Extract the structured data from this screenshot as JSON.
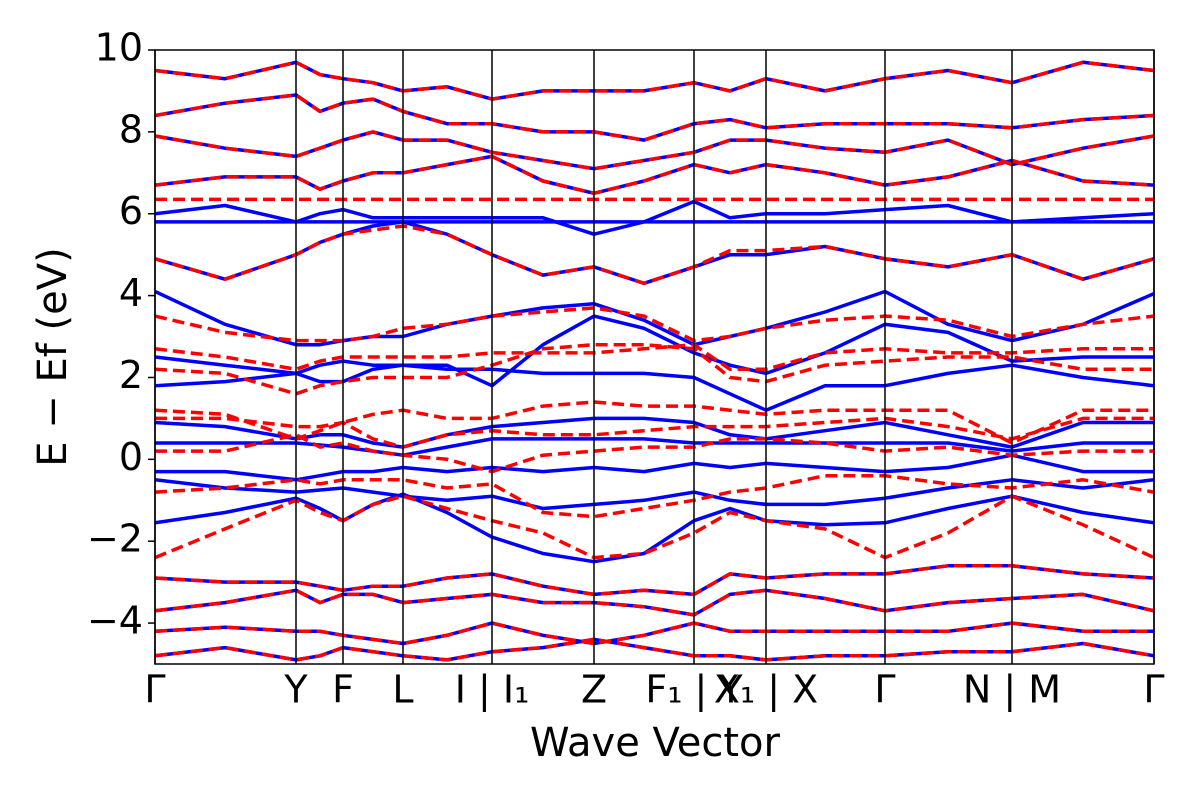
{
  "chart_data": {
    "type": "line",
    "xlabel": "Wave Vector",
    "ylabel": "E − Ef (eV)",
    "xlim": [
      0,
      999
    ],
    "ylim": [
      -5,
      10
    ],
    "xticks": [
      {
        "value": 0,
        "label": "Γ"
      },
      {
        "value": 141,
        "label": "Y"
      },
      {
        "value": 188,
        "label": "F"
      },
      {
        "value": 248,
        "label": "L"
      },
      {
        "value": 337,
        "label": "I | I₁"
      },
      {
        "value": 439,
        "label": "Z"
      },
      {
        "value": 539,
        "label": "F₁ | Y"
      },
      {
        "value": 611,
        "label": "X₁ | X"
      },
      {
        "value": 730,
        "label": "Γ"
      },
      {
        "value": 857,
        "label": "N | M"
      },
      {
        "value": 999,
        "label": "Γ"
      }
    ],
    "yticks": [
      {
        "value": -4,
        "label": "−4"
      },
      {
        "value": -2,
        "label": "−2"
      },
      0,
      2,
      4,
      6,
      8,
      10
    ],
    "x": [
      0,
      70,
      141,
      165,
      188,
      218,
      248,
      292,
      337,
      388,
      439,
      489,
      539,
      575,
      611,
      670,
      730,
      793,
      857,
      928,
      999
    ],
    "series": [
      {
        "color": "#0000ff",
        "linestyle": "solid",
        "values": [
          -1.55,
          -1.3,
          -0.95,
          -1.2,
          -1.5,
          -1.1,
          -0.85,
          -1.3,
          -1.9,
          -2.3,
          -2.5,
          -2.3,
          -1.5,
          -1.2,
          -1.5,
          -1.6,
          -1.55,
          -1.2,
          -0.9,
          -1.3,
          -1.55
        ]
      },
      {
        "color": "#0000ff",
        "linestyle": "solid",
        "values": [
          -0.5,
          -0.7,
          -0.8,
          -0.75,
          -0.7,
          -0.8,
          -0.9,
          -1.0,
          -0.9,
          -1.2,
          -1.1,
          -1.0,
          -0.8,
          -1.0,
          -1.1,
          -1.1,
          -0.95,
          -0.7,
          -0.5,
          -0.7,
          -0.5
        ]
      },
      {
        "color": "#0000ff",
        "linestyle": "solid",
        "values": [
          -0.3,
          -0.3,
          -0.5,
          -0.4,
          -0.3,
          -0.3,
          -0.2,
          -0.3,
          -0.2,
          -0.3,
          -0.2,
          -0.3,
          -0.1,
          -0.2,
          -0.1,
          -0.2,
          -0.3,
          -0.2,
          0.1,
          -0.3,
          -0.3
        ]
      },
      {
        "color": "#0000ff",
        "linestyle": "solid",
        "values": [
          0.4,
          0.4,
          0.4,
          0.35,
          0.3,
          0.2,
          0.1,
          0.3,
          0.5,
          0.5,
          0.5,
          0.5,
          0.4,
          0.4,
          0.4,
          0.4,
          0.4,
          0.4,
          0.2,
          0.4,
          0.4
        ]
      },
      {
        "color": "#0000ff",
        "linestyle": "solid",
        "values": [
          0.9,
          0.8,
          0.5,
          0.6,
          0.6,
          0.4,
          0.3,
          0.6,
          0.8,
          0.9,
          1.0,
          1.0,
          0.9,
          0.6,
          0.5,
          0.7,
          0.9,
          0.6,
          0.3,
          0.9,
          0.9
        ]
      },
      {
        "color": "#0000ff",
        "linestyle": "solid",
        "values": [
          1.8,
          1.9,
          2.1,
          1.9,
          1.9,
          2.2,
          2.3,
          2.2,
          2.2,
          2.1,
          2.1,
          2.1,
          2.0,
          1.6,
          1.2,
          1.8,
          1.8,
          2.1,
          2.3,
          2.0,
          1.8
        ]
      },
      {
        "color": "#0000ff",
        "linestyle": "solid",
        "values": [
          2.5,
          2.3,
          2.1,
          2.3,
          2.4,
          2.3,
          2.3,
          2.3,
          1.8,
          2.8,
          3.5,
          3.2,
          2.6,
          2.3,
          2.1,
          2.6,
          3.3,
          3.1,
          2.4,
          2.5,
          2.5
        ]
      },
      {
        "color": "#0000ff",
        "linestyle": "solid",
        "values": [
          4.1,
          3.3,
          2.8,
          2.8,
          2.9,
          3.0,
          3.0,
          3.3,
          3.5,
          3.7,
          3.8,
          3.4,
          2.8,
          3.0,
          3.2,
          3.6,
          4.1,
          3.3,
          2.9,
          3.3,
          4.05
        ]
      },
      {
        "color": "#0000ff",
        "linestyle": "solid",
        "values": [
          4.9,
          4.4,
          5.0,
          5.3,
          5.5,
          5.7,
          5.8,
          5.5,
          5.0,
          4.5,
          4.7,
          4.3,
          4.7,
          5.0,
          5.0,
          5.2,
          4.9,
          4.7,
          5.0,
          4.4,
          4.9
        ]
      },
      {
        "color": "#0000ff",
        "linestyle": "solid",
        "values": [
          5.8,
          5.8,
          5.8,
          5.8,
          5.8,
          5.8,
          5.8,
          5.8,
          5.8,
          5.8,
          5.8,
          5.8,
          5.8,
          5.8,
          5.8,
          5.8,
          5.8,
          5.8,
          5.8,
          5.8,
          5.8
        ]
      },
      {
        "color": "#0000ff",
        "linestyle": "solid",
        "values": [
          6.0,
          6.2,
          5.8,
          6.0,
          6.1,
          5.9,
          5.9,
          5.9,
          5.9,
          5.9,
          5.5,
          5.8,
          6.3,
          5.9,
          6.0,
          6.0,
          6.1,
          6.2,
          5.8,
          5.9,
          6.0
        ]
      },
      {
        "color": "#0000ff",
        "linestyle": "solid",
        "values": [
          6.7,
          6.9,
          6.9,
          6.6,
          6.8,
          7.0,
          7.0,
          7.2,
          7.4,
          6.8,
          6.5,
          6.8,
          7.2,
          7.0,
          7.2,
          7.0,
          6.7,
          6.9,
          7.3,
          6.8,
          6.7
        ]
      },
      {
        "color": "#0000ff",
        "linestyle": "solid",
        "values": [
          7.9,
          7.6,
          7.4,
          7.6,
          7.8,
          8.0,
          7.8,
          7.8,
          7.5,
          7.3,
          7.1,
          7.3,
          7.5,
          7.8,
          7.8,
          7.6,
          7.5,
          7.8,
          7.2,
          7.6,
          7.9
        ]
      },
      {
        "color": "#0000ff",
        "linestyle": "solid",
        "values": [
          8.4,
          8.7,
          8.9,
          8.5,
          8.7,
          8.8,
          8.5,
          8.2,
          8.2,
          8.0,
          8.0,
          7.8,
          8.2,
          8.3,
          8.1,
          8.2,
          8.2,
          8.2,
          8.1,
          8.3,
          8.4
        ]
      },
      {
        "color": "#0000ff",
        "linestyle": "solid",
        "values": [
          9.5,
          9.3,
          9.7,
          9.4,
          9.3,
          9.2,
          9.0,
          9.1,
          8.8,
          9.0,
          9.0,
          9.0,
          9.2,
          9.0,
          9.3,
          9.0,
          9.3,
          9.5,
          9.2,
          9.7,
          9.5
        ]
      },
      {
        "color": "#0000ff",
        "linestyle": "solid",
        "values": [
          -2.9,
          -3.0,
          -3.0,
          -3.1,
          -3.2,
          -3.1,
          -3.1,
          -2.9,
          -2.8,
          -3.1,
          -3.3,
          -3.2,
          -3.3,
          -2.8,
          -2.9,
          -2.8,
          -2.8,
          -2.6,
          -2.6,
          -2.8,
          -2.9
        ]
      },
      {
        "color": "#0000ff",
        "linestyle": "solid",
        "values": [
          -3.7,
          -3.5,
          -3.2,
          -3.5,
          -3.3,
          -3.3,
          -3.5,
          -3.4,
          -3.3,
          -3.5,
          -3.5,
          -3.6,
          -3.8,
          -3.3,
          -3.2,
          -3.4,
          -3.7,
          -3.5,
          -3.4,
          -3.3,
          -3.7
        ]
      },
      {
        "color": "#0000ff",
        "linestyle": "solid",
        "values": [
          -4.2,
          -4.1,
          -4.2,
          -4.2,
          -4.3,
          -4.4,
          -4.5,
          -4.3,
          -4.0,
          -4.3,
          -4.5,
          -4.3,
          -4.0,
          -4.2,
          -4.2,
          -4.2,
          -4.2,
          -4.2,
          -4.0,
          -4.2,
          -4.2
        ]
      },
      {
        "color": "#0000ff",
        "linestyle": "solid",
        "values": [
          -4.8,
          -4.6,
          -4.9,
          -4.8,
          -4.6,
          -4.7,
          -4.8,
          -4.9,
          -4.7,
          -4.6,
          -4.4,
          -4.6,
          -4.8,
          -4.8,
          -4.9,
          -4.8,
          -4.8,
          -4.7,
          -4.7,
          -4.5,
          -4.8
        ]
      },
      {
        "color": "#ff0000",
        "linestyle": "dashed",
        "values": [
          -2.4,
          -1.7,
          -1.0,
          -1.3,
          -1.5,
          -1.1,
          -0.9,
          -1.2,
          -1.5,
          -1.8,
          -2.4,
          -2.3,
          -1.8,
          -1.3,
          -1.5,
          -1.7,
          -2.4,
          -1.8,
          -0.9,
          -1.6,
          -2.4
        ]
      },
      {
        "color": "#ff0000",
        "linestyle": "dashed",
        "values": [
          -0.8,
          -0.7,
          -0.5,
          -0.6,
          -0.5,
          -0.5,
          -0.5,
          -0.7,
          -0.6,
          -1.3,
          -1.4,
          -1.2,
          -1.0,
          -0.8,
          -0.7,
          -0.4,
          -0.4,
          -0.6,
          -0.7,
          -0.5,
          -0.8
        ]
      },
      {
        "color": "#ff0000",
        "linestyle": "dashed",
        "values": [
          0.2,
          0.2,
          0.6,
          0.3,
          0.4,
          0.2,
          0.1,
          0.0,
          -0.3,
          0.1,
          0.2,
          0.3,
          0.3,
          0.5,
          0.5,
          0.4,
          0.2,
          0.3,
          0.1,
          0.2,
          0.2
        ]
      },
      {
        "color": "#ff0000",
        "linestyle": "dashed",
        "values": [
          1.0,
          1.0,
          0.8,
          0.8,
          0.9,
          0.5,
          0.3,
          0.6,
          0.7,
          0.6,
          0.6,
          0.7,
          0.8,
          0.8,
          0.8,
          0.9,
          1.0,
          0.8,
          0.5,
          1.0,
          1.0
        ]
      },
      {
        "color": "#ff0000",
        "linestyle": "dashed",
        "values": [
          1.2,
          1.1,
          0.5,
          0.7,
          0.9,
          1.1,
          1.2,
          1.0,
          1.0,
          1.3,
          1.4,
          1.3,
          1.3,
          1.2,
          1.1,
          1.2,
          1.2,
          1.2,
          0.4,
          1.2,
          1.2
        ]
      },
      {
        "color": "#ff0000",
        "linestyle": "dashed",
        "values": [
          2.2,
          2.1,
          1.6,
          1.8,
          1.9,
          2.0,
          2.0,
          2.0,
          2.3,
          2.7,
          2.8,
          2.8,
          2.7,
          2.0,
          1.9,
          2.3,
          2.4,
          2.5,
          2.5,
          2.2,
          2.2
        ]
      },
      {
        "color": "#ff0000",
        "linestyle": "dashed",
        "values": [
          2.7,
          2.5,
          2.2,
          2.4,
          2.5,
          2.5,
          2.5,
          2.5,
          2.6,
          2.6,
          2.6,
          2.7,
          2.8,
          2.2,
          2.2,
          2.6,
          2.7,
          2.6,
          2.6,
          2.7,
          2.7
        ]
      },
      {
        "color": "#ff0000",
        "linestyle": "dashed",
        "values": [
          3.5,
          3.1,
          2.9,
          2.9,
          2.9,
          3.0,
          3.2,
          3.3,
          3.5,
          3.6,
          3.7,
          3.5,
          2.9,
          3.0,
          3.2,
          3.4,
          3.5,
          3.4,
          3.0,
          3.3,
          3.5
        ]
      },
      {
        "color": "#ff0000",
        "linestyle": "dashed",
        "values": [
          4.9,
          4.4,
          5.0,
          5.3,
          5.5,
          5.6,
          5.7,
          5.5,
          5.0,
          4.5,
          4.7,
          4.3,
          4.7,
          5.1,
          5.1,
          5.2,
          4.9,
          4.7,
          5.0,
          4.4,
          4.9
        ]
      },
      {
        "color": "#ff0000",
        "linestyle": "dashed",
        "values": [
          6.35,
          6.35,
          6.35,
          6.35,
          6.35,
          6.35,
          6.35,
          6.35,
          6.35,
          6.35,
          6.35,
          6.35,
          6.35,
          6.35,
          6.35,
          6.35,
          6.35,
          6.35,
          6.35,
          6.35,
          6.35
        ]
      },
      {
        "color": "#ff0000",
        "linestyle": "dashed",
        "values": [
          6.7,
          6.9,
          6.9,
          6.6,
          6.8,
          7.0,
          7.0,
          7.2,
          7.4,
          6.8,
          6.5,
          6.8,
          7.2,
          7.0,
          7.2,
          7.0,
          6.7,
          6.9,
          7.3,
          6.8,
          6.7
        ]
      },
      {
        "color": "#ff0000",
        "linestyle": "dashed",
        "values": [
          7.9,
          7.6,
          7.4,
          7.6,
          7.8,
          8.0,
          7.8,
          7.8,
          7.5,
          7.3,
          7.1,
          7.3,
          7.5,
          7.8,
          7.8,
          7.6,
          7.5,
          7.8,
          7.2,
          7.6,
          7.9
        ]
      },
      {
        "color": "#ff0000",
        "linestyle": "dashed",
        "values": [
          8.4,
          8.7,
          8.9,
          8.5,
          8.7,
          8.8,
          8.5,
          8.2,
          8.2,
          8.0,
          8.0,
          7.8,
          8.2,
          8.3,
          8.1,
          8.2,
          8.2,
          8.2,
          8.1,
          8.3,
          8.4
        ]
      },
      {
        "color": "#ff0000",
        "linestyle": "dashed",
        "values": [
          9.5,
          9.3,
          9.7,
          9.4,
          9.3,
          9.2,
          9.0,
          9.1,
          8.8,
          9.0,
          9.0,
          9.0,
          9.2,
          9.0,
          9.3,
          9.0,
          9.3,
          9.5,
          9.2,
          9.7,
          9.5
        ]
      },
      {
        "color": "#ff0000",
        "linestyle": "dashed",
        "values": [
          -2.9,
          -3.0,
          -3.0,
          -3.1,
          -3.2,
          -3.1,
          -3.1,
          -2.9,
          -2.8,
          -3.1,
          -3.3,
          -3.2,
          -3.3,
          -2.8,
          -2.9,
          -2.8,
          -2.8,
          -2.6,
          -2.6,
          -2.8,
          -2.9
        ]
      },
      {
        "color": "#ff0000",
        "linestyle": "dashed",
        "values": [
          -3.7,
          -3.5,
          -3.2,
          -3.5,
          -3.3,
          -3.3,
          -3.5,
          -3.4,
          -3.3,
          -3.5,
          -3.5,
          -3.6,
          -3.8,
          -3.3,
          -3.2,
          -3.4,
          -3.7,
          -3.5,
          -3.4,
          -3.3,
          -3.7
        ]
      },
      {
        "color": "#ff0000",
        "linestyle": "dashed",
        "values": [
          -4.2,
          -4.1,
          -4.2,
          -4.2,
          -4.3,
          -4.4,
          -4.5,
          -4.3,
          -4.0,
          -4.3,
          -4.5,
          -4.3,
          -4.0,
          -4.2,
          -4.2,
          -4.2,
          -4.2,
          -4.2,
          -4.0,
          -4.2,
          -4.2
        ]
      },
      {
        "color": "#ff0000",
        "linestyle": "dashed",
        "values": [
          -4.8,
          -4.6,
          -4.9,
          -4.8,
          -4.6,
          -4.7,
          -4.8,
          -4.9,
          -4.7,
          -4.6,
          -4.4,
          -4.6,
          -4.8,
          -4.8,
          -4.9,
          -4.8,
          -4.8,
          -4.7,
          -4.7,
          -4.5,
          -4.8
        ]
      }
    ]
  }
}
